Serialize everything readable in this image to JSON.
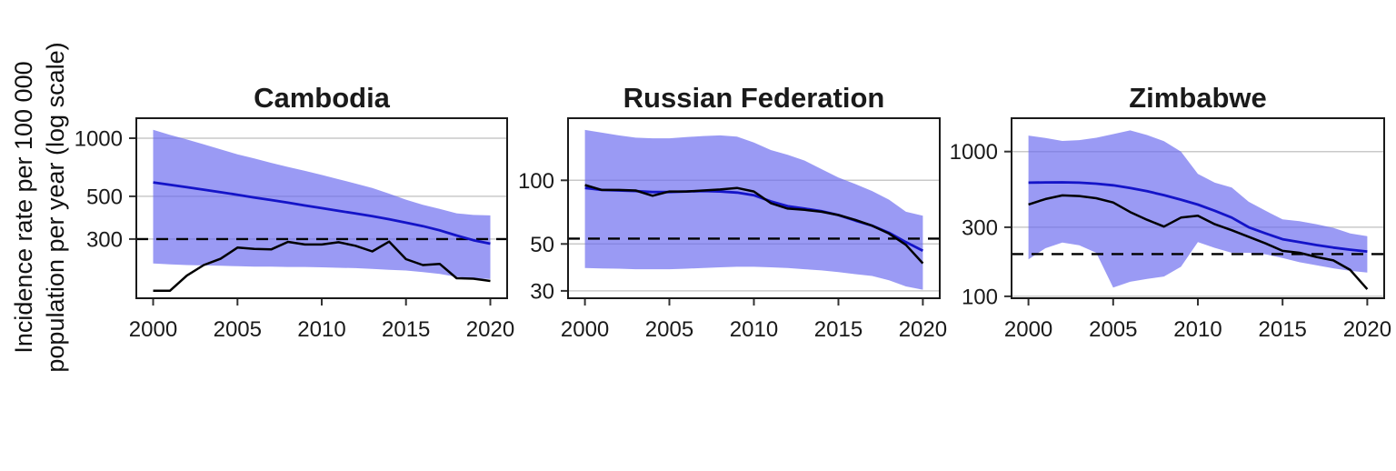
{
  "y_axis": {
    "label_line1": "Incidence rate per 100 000",
    "label_line2": "population per year (log scale)"
  },
  "colors": {
    "band": "#6666EE",
    "band_opacity": 0.66,
    "estimate": "#1414C8",
    "notified": "#000000",
    "reference": "#000000",
    "grid": "#C9C9C9",
    "frame": "#1A1A1A",
    "tick": "#333333",
    "text": "#1A1A1A"
  },
  "chart_data": [
    {
      "type": "line",
      "title": "Cambodia",
      "x": [
        2000,
        2001,
        2002,
        2003,
        2004,
        2005,
        2006,
        2007,
        2008,
        2009,
        2010,
        2011,
        2012,
        2013,
        2014,
        2015,
        2016,
        2017,
        2018,
        2019,
        2020
      ],
      "xticks": [
        2000,
        2005,
        2010,
        2015,
        2020
      ],
      "xlim": [
        1999,
        2021
      ],
      "yscale": "log",
      "ylim": [
        148,
        1270
      ],
      "yticks": [
        1000,
        500,
        300
      ],
      "grid": true,
      "legend": "none",
      "reference_line": 300,
      "series": [
        {
          "name": "estimate",
          "values": [
            590,
            573,
            557,
            541,
            525,
            509,
            493,
            478,
            463,
            448,
            434,
            420,
            407,
            394,
            380,
            365,
            350,
            333,
            313,
            296,
            284
          ]
        },
        {
          "name": "estimate_high",
          "values": [
            1105,
            1040,
            985,
            930,
            875,
            825,
            785,
            745,
            710,
            677,
            645,
            613,
            582,
            552,
            516,
            480,
            452,
            430,
            408,
            400,
            398
          ]
        },
        {
          "name": "estimate_low",
          "values": [
            224,
            222,
            220,
            219,
            218,
            217,
            216,
            216,
            215,
            215,
            214,
            213,
            212,
            210,
            208,
            206,
            202,
            198,
            191,
            188,
            186
          ]
        },
        {
          "name": "notified",
          "values": [
            162,
            162,
            194,
            220,
            237,
            271,
            267,
            265,
            290,
            281,
            281,
            289,
            277,
            259,
            291,
            236,
            220,
            223,
            188,
            187,
            182
          ]
        }
      ]
    },
    {
      "type": "line",
      "title": "Russian Federation",
      "x": [
        2000,
        2001,
        2002,
        2003,
        2004,
        2005,
        2006,
        2007,
        2008,
        2009,
        2010,
        2011,
        2012,
        2013,
        2014,
        2015,
        2016,
        2017,
        2018,
        2019,
        2020
      ],
      "xticks": [
        2000,
        2005,
        2010,
        2015,
        2020
      ],
      "xlim": [
        1999,
        2021
      ],
      "yscale": "log",
      "ylim": [
        27.7,
        196.6
      ],
      "yticks": [
        100,
        50,
        30
      ],
      "grid": true,
      "legend": "none",
      "reference_line": 53,
      "series": [
        {
          "name": "estimate",
          "values": [
            92,
            90,
            89.5,
            89,
            88,
            88,
            88.5,
            89,
            88.5,
            87.5,
            85,
            79.5,
            75.5,
            73.5,
            71.5,
            68.5,
            64.5,
            61,
            56.5,
            51,
            46.5
          ]
        },
        {
          "name": "estimate_high",
          "values": [
            173,
            168,
            163,
            159,
            158,
            158,
            160,
            162,
            163,
            161,
            151,
            139,
            132,
            124,
            113,
            103,
            96,
            89,
            81,
            71,
            68
          ]
        },
        {
          "name": "estimate_low",
          "values": [
            38.5,
            38.3,
            38.2,
            38,
            38,
            38,
            38.2,
            38.5,
            38.8,
            39,
            39,
            38.8,
            38.5,
            38,
            37.5,
            36.8,
            36,
            35.3,
            33.7,
            31.5,
            30.4
          ]
        },
        {
          "name": "notified",
          "values": [
            95,
            90,
            90,
            89.5,
            84.5,
            88.5,
            88.5,
            89.5,
            90.5,
            92,
            88.5,
            78,
            73.5,
            72.5,
            71,
            68.5,
            65,
            61,
            56,
            49.5,
            40.5
          ]
        }
      ]
    },
    {
      "type": "line",
      "title": "Zimbabwe",
      "x": [
        2000,
        2001,
        2002,
        2003,
        2004,
        2005,
        2006,
        2007,
        2008,
        2009,
        2010,
        2011,
        2012,
        2013,
        2014,
        2015,
        2016,
        2017,
        2018,
        2019,
        2020
      ],
      "xticks": [
        2000,
        2005,
        2010,
        2015,
        2020
      ],
      "xlim": [
        1999,
        2021
      ],
      "yscale": "log",
      "ylim": [
        97,
        1700
      ],
      "yticks": [
        1000,
        300,
        100
      ],
      "grid": true,
      "legend": "none",
      "reference_line": 196,
      "series": [
        {
          "name": "estimate",
          "values": [
            610,
            612,
            613,
            610,
            600,
            585,
            560,
            532,
            500,
            465,
            430,
            390,
            350,
            300,
            272,
            248,
            237,
            226,
            217,
            210,
            204
          ]
        },
        {
          "name": "estimate_high",
          "values": [
            1290,
            1240,
            1185,
            1200,
            1245,
            1320,
            1400,
            1300,
            1180,
            1000,
            700,
            610,
            565,
            450,
            390,
            340,
            330,
            315,
            297,
            272,
            260
          ]
        },
        {
          "name": "estimate_low",
          "values": [
            180,
            215,
            235,
            225,
            200,
            115,
            126,
            132,
            137,
            160,
            237,
            216,
            200,
            200,
            195,
            184,
            172,
            164,
            156,
            150,
            146
          ]
        },
        {
          "name": "notified",
          "values": [
            431,
            470,
            498,
            493,
            476,
            445,
            382,
            338,
            303,
            350,
            360,
            315,
            286,
            258,
            232,
            206,
            200,
            187,
            177,
            152,
            112
          ]
        }
      ]
    }
  ]
}
